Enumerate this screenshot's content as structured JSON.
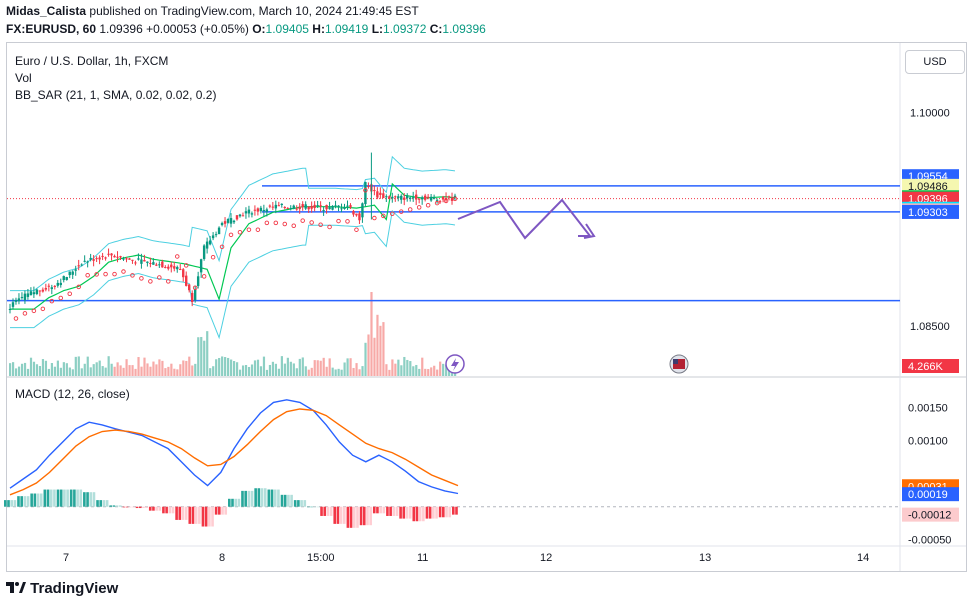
{
  "header": {
    "author": "Midas_Calista",
    "published_text": "published on TradingView.com, March 10, 2024 21:49:45 EST",
    "symbol": "FX:EURUSD, 60",
    "last": "1.09396",
    "change": "+0.00053 (+0.05%)",
    "o_label": "O:",
    "o": "1.09405",
    "h_label": "H:",
    "h": "1.09419",
    "l_label": "L:",
    "l": "1.09372",
    "c_label": "C:",
    "c": "1.09396"
  },
  "currency_button": "USD",
  "legends": {
    "title": "Euro / U.S. Dollar, 1h, FXCM",
    "vol": "Vol",
    "bb_sar": "BB_SAR (21, 1, SMA, 0.02, 0.02, 0.2)",
    "macd": "MACD (12, 26, close)"
  },
  "footer": {
    "brand": "TradingView"
  },
  "chart_data": [
    {
      "type": "candlestick",
      "title": "Euro / U.S. Dollar, 1h, FXCM",
      "y_ticks": [
        {
          "value": 1.1,
          "label": "1.10000"
        },
        {
          "value": 1.085,
          "label": "1.08500"
        }
      ],
      "x_ticks": [
        "7",
        "8",
        "15:00",
        "11",
        "12",
        "13",
        "14"
      ],
      "ylim": [
        1.0815,
        1.1049
      ],
      "price_labels": [
        {
          "label": "1.09554",
          "value": 1.09554,
          "bg": "#2962ff",
          "fg": "#ffffff"
        },
        {
          "label": "1.09486",
          "value": 1.09486,
          "bg": "#f5f7b0",
          "fg": "#131722"
        },
        {
          "label": "1.09406",
          "value": 1.09406,
          "bg": "#00c853",
          "fg": "#131722"
        },
        {
          "label": "1.09396",
          "value": 1.09396,
          "bg": "#f23645",
          "fg": "#ffffff",
          "sub": "10:18"
        },
        {
          "label": "1.09325",
          "value": 1.09325,
          "bg": "#00e5ff",
          "fg": "#131722"
        },
        {
          "label": "1.09314",
          "value": 1.09314,
          "bg": "#f8b6bc",
          "fg": "#131722"
        },
        {
          "label": "1.09303",
          "value": 1.09303,
          "bg": "#2962ff",
          "fg": "#ffffff"
        }
      ],
      "volume_label": {
        "label": "4.266K",
        "bg": "#f23645",
        "fg": "#ffffff"
      },
      "horizontal_lines": [
        1.09486,
        1.09303,
        1.0868
      ],
      "colors": {
        "up": "#089981",
        "down": "#f23645",
        "line": "#2962ff",
        "projection": "#7e57c2"
      }
    },
    {
      "type": "line",
      "title": "MACD (12, 26, close)",
      "y_ticks": [
        {
          "value": 0.0015,
          "label": "0.00150"
        },
        {
          "value": 0.001,
          "label": "0.00100"
        },
        {
          "value": -0.0005,
          "label": "-0.00050"
        }
      ],
      "ylim": [
        -0.00058,
        0.00195
      ],
      "value_labels": [
        {
          "label": "0.00031",
          "value": 0.00031,
          "bg": "#ff6d00",
          "fg": "#ffffff"
        },
        {
          "label": "0.00019",
          "value": 0.00019,
          "bg": "#2962ff",
          "fg": "#ffffff"
        },
        {
          "label": "-0.00012",
          "value": -0.00012,
          "bg": "#fccbcd",
          "fg": "#131722"
        }
      ],
      "series": [
        {
          "type": "line",
          "color": "#2962ff",
          "values": [
            0.00028,
            0.00042,
            0.00056,
            0.00078,
            0.00098,
            0.00118,
            0.00128,
            0.00124,
            0.00118,
            0.00113,
            0.00108,
            0.00098,
            0.00088,
            0.00068,
            0.00048,
            0.00032,
            0.00052,
            0.00088,
            0.00118,
            0.00142,
            0.00158,
            0.00162,
            0.00158,
            0.00146,
            0.00124,
            0.00098,
            0.00078,
            0.00068,
            0.00078,
            0.00068,
            0.00054,
            0.00038,
            0.0003,
            0.00024,
            0.0002
          ]
        },
        {
          "type": "line",
          "color": "#ff6d00",
          "values": [
            0.00018,
            0.00026,
            0.00036,
            0.00052,
            0.00072,
            0.00092,
            0.00106,
            0.00114,
            0.00116,
            0.00114,
            0.0011,
            0.00104,
            0.00098,
            0.00088,
            0.00074,
            0.00062,
            0.00064,
            0.00076,
            0.00094,
            0.00114,
            0.00132,
            0.00144,
            0.00148,
            0.00146,
            0.00138,
            0.00124,
            0.0011,
            0.00096,
            0.00088,
            0.00082,
            0.00072,
            0.0006,
            0.00048,
            0.0004,
            0.00032
          ]
        },
        {
          "type": "histogram",
          "values": [
            0.0001,
            0.00016,
            0.0002,
            0.00026,
            0.00026,
            0.00026,
            0.00022,
            0.0001,
            2e-05,
            -1e-05,
            -2e-05,
            -6e-05,
            -0.0001,
            -0.0002,
            -0.00026,
            -0.0003,
            -0.00012,
            0.00012,
            0.00024,
            0.00028,
            0.00026,
            0.00018,
            0.0001,
            0.0,
            -0.00014,
            -0.00026,
            -0.00032,
            -0.00028,
            -0.0001,
            -0.00014,
            -0.00018,
            -0.00022,
            -0.00018,
            -0.00016,
            -0.00012
          ]
        }
      ]
    }
  ]
}
